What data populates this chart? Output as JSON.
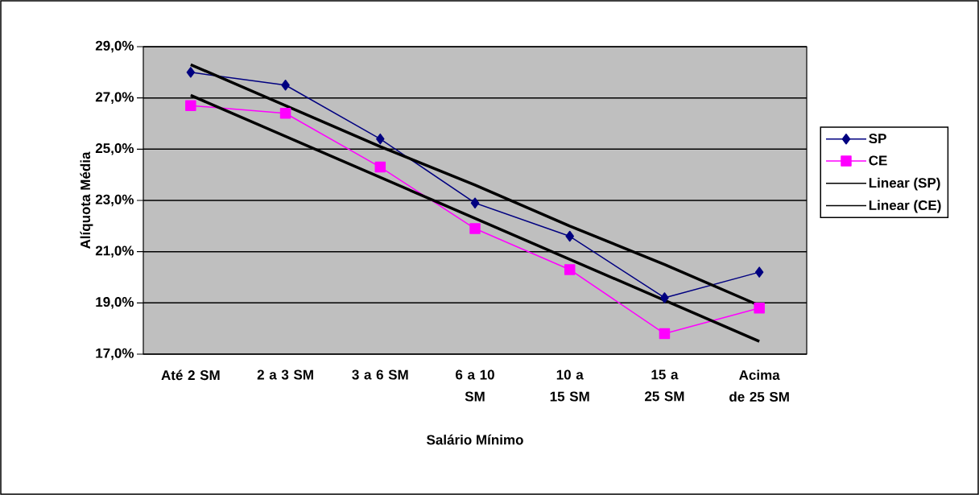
{
  "chart_data": {
    "type": "line",
    "xlabel": "Salário Mínimo",
    "ylabel": "Alíquota Média",
    "categories": [
      "Até 2 SM",
      "2 a 3 SM",
      "3 a 6 SM",
      "6 a 10 SM",
      "10 a 15 SM",
      "15 a 25 SM",
      "Acima de 25 SM"
    ],
    "series": [
      {
        "name": "SP",
        "color": "#000080",
        "marker": "diamond",
        "values": [
          28.0,
          27.5,
          25.4,
          22.9,
          21.6,
          19.2,
          20.2
        ]
      },
      {
        "name": "CE",
        "color": "#ff00ff",
        "marker": "square",
        "values": [
          26.7,
          26.4,
          24.3,
          21.9,
          20.3,
          17.8,
          18.8
        ]
      },
      {
        "name": "Linear (SP)",
        "color": "#000000",
        "marker": "none",
        "values": [
          28.3,
          26.7,
          25.1,
          23.6,
          22.0,
          20.5,
          18.9
        ]
      },
      {
        "name": "Linear (CE)",
        "color": "#000000",
        "marker": "none",
        "values": [
          27.1,
          25.5,
          23.9,
          22.3,
          20.7,
          19.1,
          17.5
        ]
      }
    ],
    "ylim": [
      17,
      29
    ],
    "yticks": [
      {
        "value": 17,
        "label": "17,0%"
      },
      {
        "value": 19,
        "label": "19,0%"
      },
      {
        "value": 21,
        "label": "21,0%"
      },
      {
        "value": 23,
        "label": "23,0%"
      },
      {
        "value": 25,
        "label": "25,0%"
      },
      {
        "value": 27,
        "label": "27,0%"
      },
      {
        "value": 29,
        "label": "29,0%"
      }
    ],
    "grid": "y",
    "legend": "right"
  }
}
